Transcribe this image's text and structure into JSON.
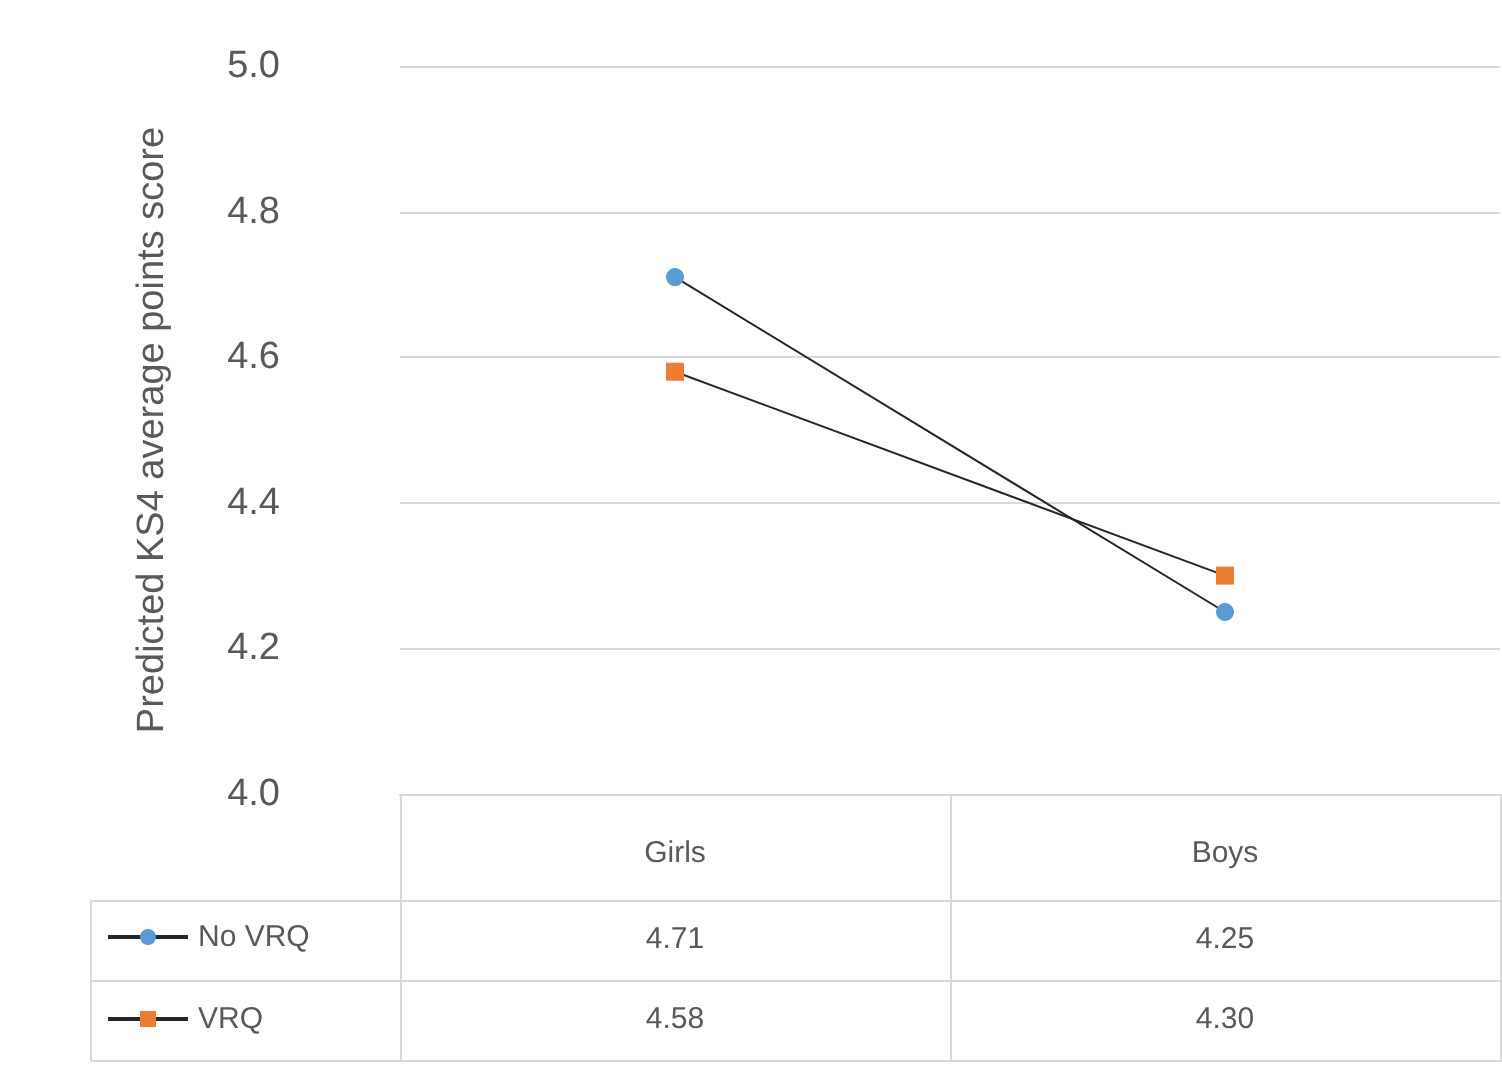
{
  "chart_data": {
    "type": "line",
    "ylabel": "Predicted KS4 average points score",
    "categories": [
      "Girls",
      "Boys"
    ],
    "series": [
      {
        "name": "No VRQ",
        "color": "#262626",
        "colors": [
          "#5b9bd5",
          "#5b9bd5"
        ],
        "marker": "circle",
        "values": [
          4.71,
          4.25
        ],
        "value_labels": [
          "4.71",
          "4.25"
        ]
      },
      {
        "name": "VRQ",
        "color": "#262626",
        "colors": [
          "#ed7d31",
          "#ed7d31"
        ],
        "marker": "square",
        "values": [
          4.58,
          4.3
        ],
        "value_labels": [
          "4.58",
          "4.30"
        ]
      }
    ],
    "ylim": [
      4.0,
      5.0
    ],
    "yticks": [
      {
        "value": 4,
        "label": "4.0"
      },
      4.2,
      4.4,
      4.6,
      4.8,
      {
        "value": 5,
        "label": "5.0"
      }
    ],
    "grid": "y",
    "legend": "bottom"
  }
}
